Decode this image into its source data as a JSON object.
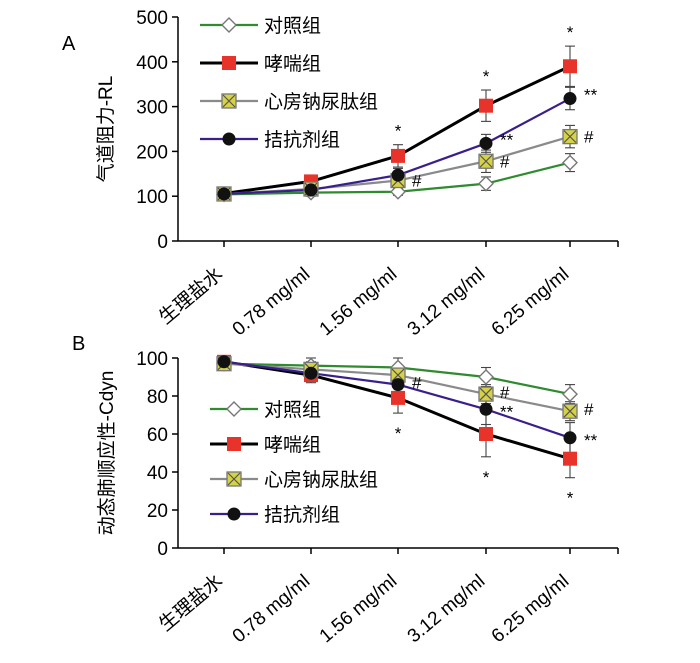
{
  "chart_data": [
    {
      "panel": "A",
      "type": "line",
      "ylabel": "气道阻力-RL",
      "ylim": [
        0,
        500
      ],
      "yticks": [
        0,
        100,
        200,
        300,
        400,
        500
      ],
      "categories": [
        "生理盐水",
        "0.78 mg/ml",
        "1.56 mg/ml",
        "3.12 mg/ml",
        "6.25 mg/ml"
      ],
      "legend_placement": "top-left",
      "series": [
        {
          "name": "对照组",
          "marker": "diamond",
          "color": "#2e8b2e",
          "values": [
            104,
            108,
            110,
            128,
            175
          ],
          "errors": [
            6,
            8,
            8,
            15,
            20
          ],
          "labels": [
            "",
            "",
            "",
            "",
            ""
          ]
        },
        {
          "name": "哮喘组",
          "marker": "square",
          "color": "#000000",
          "fill": "#e8332a",
          "values": [
            106,
            133,
            190,
            302,
            390
          ],
          "errors": [
            6,
            10,
            25,
            35,
            45
          ],
          "labels": [
            "",
            "",
            "*",
            "*",
            "*"
          ]
        },
        {
          "name": "心房钠尿肽组",
          "marker": "xbox",
          "color": "#8a8a8a",
          "fill": "#d6d246",
          "values": [
            105,
            116,
            135,
            178,
            233
          ],
          "errors": [
            6,
            10,
            15,
            25,
            25
          ],
          "labels": [
            "",
            "",
            "#",
            "#",
            "#"
          ]
        },
        {
          "name": "拮抗剂组",
          "marker": "circle",
          "color": "#3a1f8c",
          "values": [
            105,
            114,
            147,
            218,
            318
          ],
          "errors": [
            6,
            10,
            15,
            20,
            25
          ],
          "labels": [
            "",
            "",
            "",
            "**",
            "**"
          ]
        }
      ]
    },
    {
      "panel": "B",
      "type": "line",
      "ylabel": "动态肺顺应性-Cdyn",
      "ylim": [
        0,
        100
      ],
      "yticks": [
        0,
        20,
        40,
        60,
        80,
        100
      ],
      "categories": [
        "生理盐水",
        "0.78 mg/ml",
        "1.56 mg/ml",
        "3.12 mg/ml",
        "6.25 mg/ml"
      ],
      "legend_placement": "bottom-left",
      "series": [
        {
          "name": "对照组",
          "marker": "diamond",
          "color": "#2e8b2e",
          "values": [
            97,
            96,
            95,
            90,
            81
          ],
          "errors": [
            3,
            4,
            5,
            5,
            5
          ],
          "labels": [
            "",
            "",
            "",
            "",
            ""
          ]
        },
        {
          "name": "哮喘组",
          "marker": "square",
          "color": "#000000",
          "fill": "#e8332a",
          "values": [
            98,
            91,
            79,
            60,
            47
          ],
          "errors": [
            2,
            4,
            8,
            12,
            10
          ],
          "labels": [
            "",
            "",
            "*",
            "*",
            "*"
          ]
        },
        {
          "name": "心房钠尿肽组",
          "marker": "xbox",
          "color": "#8a8a8a",
          "fill": "#d6d246",
          "values": [
            97,
            94,
            91,
            81,
            72
          ],
          "errors": [
            3,
            4,
            4,
            5,
            5
          ],
          "labels": [
            "",
            "",
            "",
            "#",
            "#"
          ]
        },
        {
          "name": "拮抗剂组",
          "marker": "circle",
          "color": "#3a1f8c",
          "values": [
            98,
            92,
            86,
            73,
            58
          ],
          "errors": [
            2,
            4,
            5,
            8,
            8
          ],
          "labels": [
            "",
            "",
            "#",
            "**",
            "**"
          ]
        }
      ]
    }
  ]
}
